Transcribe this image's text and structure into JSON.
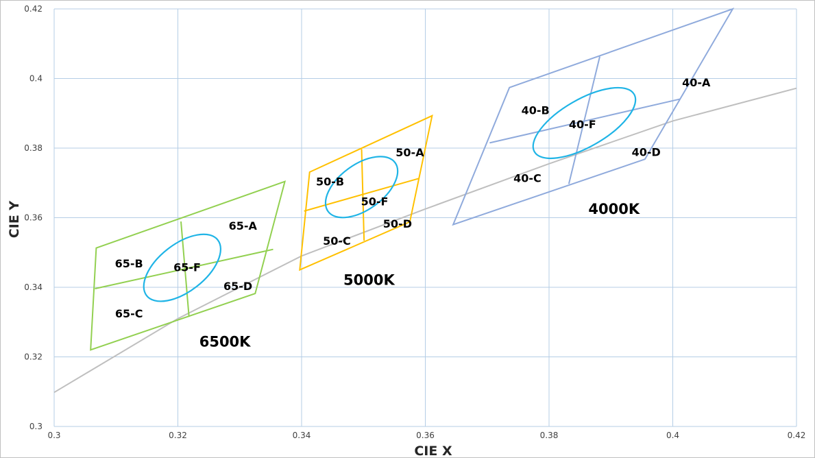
{
  "chart_data": {
    "type": "scatter",
    "xlabel": "CIE X",
    "ylabel": "CIE Y",
    "xlim": [
      0.3,
      0.42
    ],
    "ylim": [
      0.3,
      0.42
    ],
    "x_ticks": [
      "0.3",
      "0.32",
      "0.34",
      "0.36",
      "0.38",
      "0.4",
      "0.42"
    ],
    "y_ticks": [
      "0.3",
      "0.32",
      "0.34",
      "0.36",
      "0.38",
      "0.4",
      "0.42"
    ],
    "grid": true,
    "colors": {
      "grid": "#b4cde6",
      "planckian": "#bfbfbf",
      "6500K": "#92d050",
      "5000K": "#ffc000",
      "4000K": "#8faadc",
      "ellipse": "#1fb4e6"
    },
    "planckian_locus": [
      [
        0.3,
        0.3098
      ],
      [
        0.32,
        0.331
      ],
      [
        0.34,
        0.349
      ],
      [
        0.36,
        0.3625
      ],
      [
        0.38,
        0.3755
      ],
      [
        0.4,
        0.3878
      ],
      [
        0.42,
        0.3972
      ]
    ],
    "quadrangles": [
      {
        "name": "6500K",
        "color_key": "6500K",
        "corners": [
          [
            0.3068,
            0.3513
          ],
          [
            0.3373,
            0.3704
          ],
          [
            0.3325,
            0.3382
          ],
          [
            0.3059,
            0.322
          ]
        ],
        "dividers": [
          [
            [
              0.3205,
              0.3589
            ],
            [
              0.3218,
              0.3315
            ]
          ],
          [
            [
              0.3066,
              0.3396
            ],
            [
              0.3354,
              0.3509
            ]
          ]
        ],
        "ellipse": {
          "center": [
            0.3207,
            0.3456
          ],
          "rx": 0.0073,
          "ry": 0.0068,
          "rotate": -38
        },
        "labels": [
          {
            "text": "65-A",
            "x": 0.3305,
            "y": 0.3577
          },
          {
            "text": "65-B",
            "x": 0.3121,
            "y": 0.3469
          },
          {
            "text": "65-F",
            "x": 0.3215,
            "y": 0.3458
          },
          {
            "text": "65-C",
            "x": 0.3121,
            "y": 0.3325
          },
          {
            "text": "65-D",
            "x": 0.3297,
            "y": 0.3404
          }
        ],
        "cct_label": {
          "text": "6500K",
          "x": 0.3276,
          "y": 0.3243
        }
      },
      {
        "name": "5000K",
        "color_key": "5000K",
        "corners": [
          [
            0.3413,
            0.3731
          ],
          [
            0.3611,
            0.3893
          ],
          [
            0.3575,
            0.3588
          ],
          [
            0.3397,
            0.345
          ]
        ],
        "dividers": [
          [
            [
              0.3497,
              0.3797
            ],
            [
              0.3501,
              0.3534
            ]
          ],
          [
            [
              0.3404,
              0.3619
            ],
            [
              0.359,
              0.3713
            ]
          ]
        ],
        "ellipse": {
          "center": [
            0.3497,
            0.3688
          ],
          "rx": 0.0067,
          "ry": 0.0065,
          "rotate": -36
        },
        "labels": [
          {
            "text": "50-A",
            "x": 0.3575,
            "y": 0.3788
          },
          {
            "text": "50-B",
            "x": 0.3446,
            "y": 0.3704
          },
          {
            "text": "50-F",
            "x": 0.3518,
            "y": 0.3647
          },
          {
            "text": "50-C",
            "x": 0.3457,
            "y": 0.3534
          },
          {
            "text": "50-D",
            "x": 0.3555,
            "y": 0.3583
          }
        ],
        "cct_label": {
          "text": "5000K",
          "x": 0.3509,
          "y": 0.3421
        }
      },
      {
        "name": "4000K",
        "color_key": "4000K",
        "corners": [
          [
            0.3736,
            0.3974
          ],
          [
            0.4097,
            0.42
          ],
          [
            0.3955,
            0.3768
          ],
          [
            0.3645,
            0.358
          ]
        ],
        "dividers": [
          [
            [
              0.3882,
              0.4063
            ],
            [
              0.3832,
              0.3697
            ]
          ],
          [
            [
              0.3704,
              0.3815
            ],
            [
              0.4012,
              0.3941
            ]
          ]
        ],
        "ellipse": {
          "center": [
            0.3857,
            0.3872
          ],
          "rx": 0.0093,
          "ry": 0.0068,
          "rotate": -30
        },
        "labels": [
          {
            "text": "40-A",
            "x": 0.4038,
            "y": 0.3989
          },
          {
            "text": "40-B",
            "x": 0.3778,
            "y": 0.3909
          },
          {
            "text": "40-F",
            "x": 0.3854,
            "y": 0.3869
          },
          {
            "text": "40-C",
            "x": 0.3765,
            "y": 0.3714
          },
          {
            "text": "40-D",
            "x": 0.3957,
            "y": 0.3789
          }
        ],
        "cct_label": {
          "text": "4000K",
          "x": 0.3905,
          "y": 0.3625
        }
      }
    ]
  }
}
